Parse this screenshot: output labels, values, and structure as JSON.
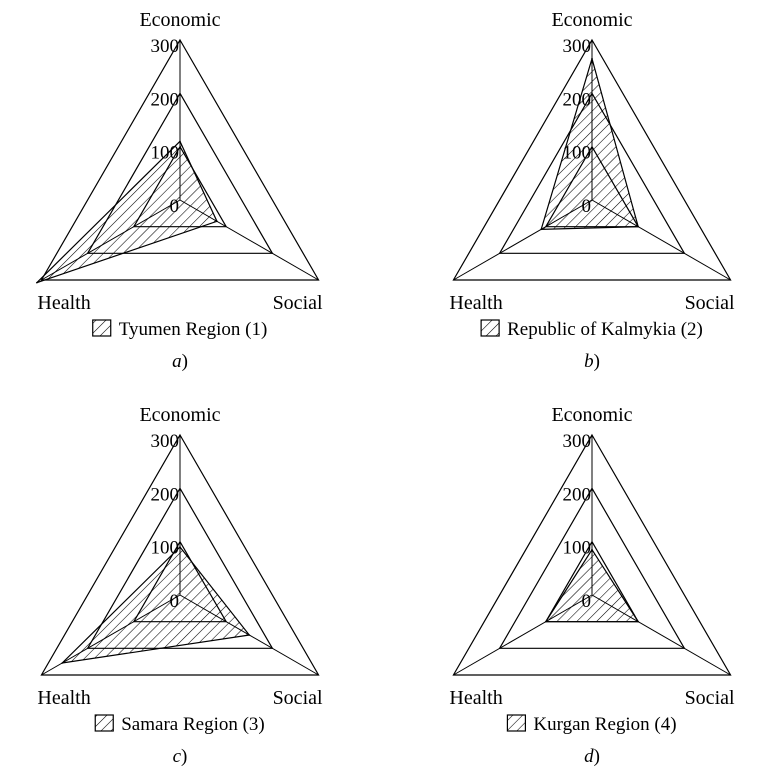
{
  "colors": {
    "ink": "#000000",
    "background": "#ffffff"
  },
  "chart_data": [
    {
      "type": "radar",
      "panel": "a",
      "caption_letter": "a",
      "caption_suffix": ")",
      "axes": [
        "Economic",
        "Social",
        "Health"
      ],
      "ticks": [
        "0",
        "100",
        "200",
        "300"
      ],
      "range": [
        0,
        300
      ],
      "grid": true,
      "legend_placement": "bottom",
      "series": [
        {
          "name": "Tyumen Region (1)",
          "values": [
            110,
            80,
            310
          ],
          "fill": "hatched"
        }
      ]
    },
    {
      "type": "radar",
      "panel": "b",
      "caption_letter": "b",
      "caption_suffix": ")",
      "axes": [
        "Economic",
        "Social",
        "Health"
      ],
      "ticks": [
        "0",
        "100",
        "200",
        "300"
      ],
      "range": [
        0,
        300
      ],
      "grid": true,
      "legend_placement": "bottom",
      "series": [
        {
          "name": "Republic of Kalmykia (2)",
          "values": [
            265,
            100,
            110
          ],
          "fill": "hatched"
        }
      ]
    },
    {
      "type": "radar",
      "panel": "c",
      "caption_letter": "c",
      "caption_suffix": ")",
      "axes": [
        "Economic",
        "Social",
        "Health"
      ],
      "ticks": [
        "0",
        "100",
        "200",
        "300"
      ],
      "range": [
        0,
        300
      ],
      "grid": true,
      "legend_placement": "bottom",
      "series": [
        {
          "name": "Samara Region (3)",
          "values": [
            90,
            150,
            255
          ],
          "fill": "hatched"
        }
      ]
    },
    {
      "type": "radar",
      "panel": "d",
      "caption_letter": "d",
      "caption_suffix": ")",
      "axes": [
        "Economic",
        "Social",
        "Health"
      ],
      "ticks": [
        "0",
        "100",
        "200",
        "300"
      ],
      "range": [
        0,
        300
      ],
      "grid": true,
      "legend_placement": "bottom",
      "series": [
        {
          "name": "Kurgan Region (4)",
          "values": [
            85,
            100,
            100
          ],
          "fill": "hatched"
        }
      ]
    }
  ]
}
